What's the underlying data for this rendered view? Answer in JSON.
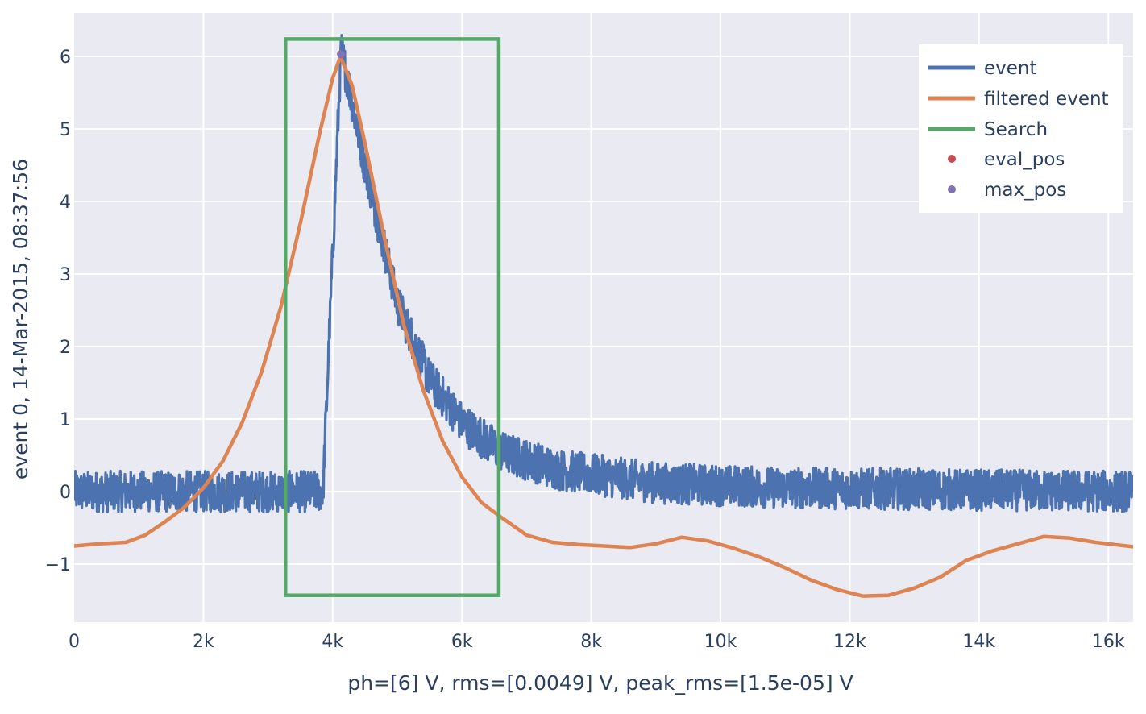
{
  "chart_data": {
    "type": "line",
    "title": "",
    "xlabel": "ph=[6] V, rms=[0.0049] V, peak_rms=[1.5e-05] V",
    "ylabel": "event 0, 14-Mar-2015, 08:37:56",
    "xlim": [
      0,
      16384
    ],
    "ylim": [
      -1.8,
      6.6
    ],
    "x_ticks": [
      {
        "value": 0,
        "label": "0"
      },
      {
        "value": 2000,
        "label": "2k"
      },
      {
        "value": 4000,
        "label": "4k"
      },
      {
        "value": 6000,
        "label": "6k"
      },
      {
        "value": 8000,
        "label": "8k"
      },
      {
        "value": 10000,
        "label": "10k"
      },
      {
        "value": 12000,
        "label": "12k"
      },
      {
        "value": 14000,
        "label": "14k"
      },
      {
        "value": 16000,
        "label": "16k"
      }
    ],
    "y_ticks": [
      {
        "value": -1,
        "label": "−1"
      },
      {
        "value": 0,
        "label": "0"
      },
      {
        "value": 1,
        "label": "1"
      },
      {
        "value": 2,
        "label": "2"
      },
      {
        "value": 3,
        "label": "3"
      },
      {
        "value": 4,
        "label": "4"
      },
      {
        "value": 5,
        "label": "5"
      },
      {
        "value": 6,
        "label": "6"
      }
    ],
    "grid": true,
    "legend_position": "top-right",
    "series": [
      {
        "name": "event",
        "kind": "line",
        "color": "#4c72b0",
        "baseline": 0,
        "noise_amplitude": 0.3,
        "pulse_onset": 3850,
        "pulse_peak_x": 4130,
        "pulse_peak_y": 6.1,
        "decay_points": [
          [
            4130,
            6.1
          ],
          [
            4500,
            4.5
          ],
          [
            5000,
            2.6
          ],
          [
            5500,
            1.55
          ],
          [
            6000,
            0.95
          ],
          [
            6600,
            0.55
          ],
          [
            7500,
            0.3
          ],
          [
            9000,
            0.12
          ],
          [
            11000,
            0.05
          ],
          [
            16384,
            0
          ]
        ]
      },
      {
        "name": "filtered event",
        "kind": "line",
        "color": "#dd8452",
        "x": [
          0,
          400,
          800,
          1100,
          1400,
          1700,
          2000,
          2300,
          2600,
          2900,
          3200,
          3500,
          3800,
          4000,
          4120,
          4300,
          4500,
          4800,
          5100,
          5400,
          5700,
          6000,
          6300,
          6600,
          7000,
          7400,
          7800,
          8200,
          8600,
          9000,
          9400,
          9800,
          10200,
          10600,
          11000,
          11400,
          11800,
          12200,
          12600,
          13000,
          13400,
          13800,
          14200,
          14600,
          15000,
          15400,
          15800,
          16384
        ],
        "y": [
          -0.75,
          -0.72,
          -0.7,
          -0.6,
          -0.42,
          -0.22,
          0.05,
          0.42,
          0.95,
          1.65,
          2.55,
          3.7,
          4.95,
          5.7,
          6.0,
          5.6,
          4.8,
          3.5,
          2.3,
          1.4,
          0.7,
          0.2,
          -0.15,
          -0.35,
          -0.6,
          -0.7,
          -0.73,
          -0.75,
          -0.77,
          -0.72,
          -0.63,
          -0.68,
          -0.78,
          -0.9,
          -1.05,
          -1.22,
          -1.35,
          -1.44,
          -1.43,
          -1.33,
          -1.18,
          -0.95,
          -0.82,
          -0.72,
          -0.62,
          -0.64,
          -0.7,
          -0.76
        ]
      },
      {
        "name": "Search",
        "kind": "rectangle",
        "color": "#55a868",
        "x_range": [
          3270,
          6570
        ],
        "y_range": [
          -1.43,
          6.24
        ]
      },
      {
        "name": "eval_pos",
        "kind": "marker",
        "color": "#c44e52",
        "x": [
          4130
        ],
        "y": [
          6.03
        ]
      },
      {
        "name": "max_pos",
        "kind": "marker",
        "color": "#8172b3",
        "x": [
          4130
        ],
        "y": [
          6.03
        ]
      }
    ]
  }
}
